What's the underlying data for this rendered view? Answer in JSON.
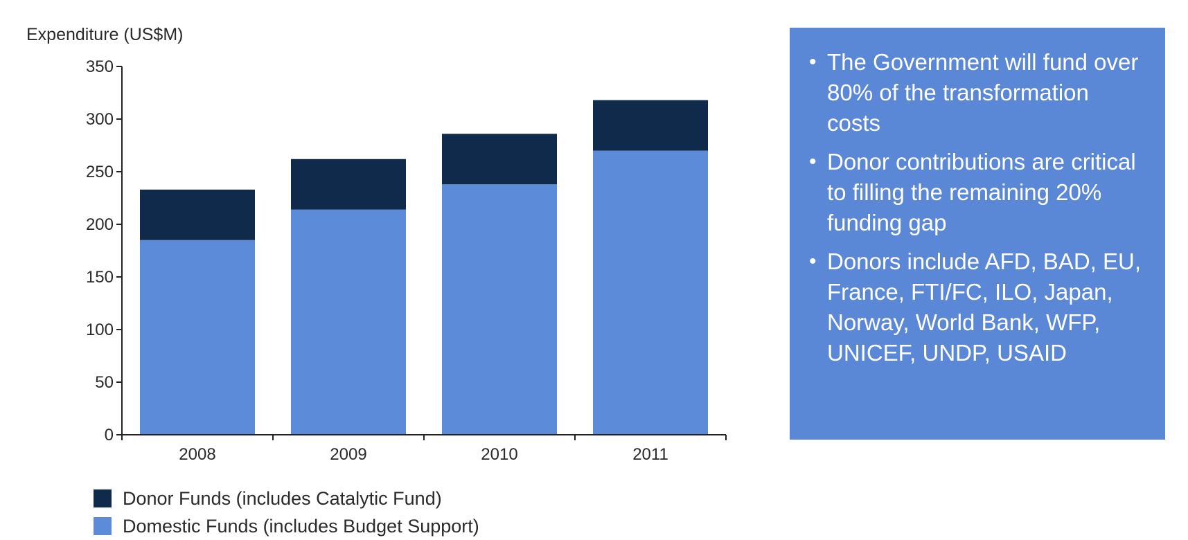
{
  "chart_data": {
    "type": "bar",
    "stacked": true,
    "ylabel": "Expenditure (US$M)",
    "xlabel": "",
    "ylim": [
      0,
      350
    ],
    "yticks": [
      0,
      50,
      100,
      150,
      200,
      250,
      300,
      350
    ],
    "categories": [
      "2008",
      "2009",
      "2010",
      "2011"
    ],
    "series": [
      {
        "name": "Domestic Funds (includes Budget Support)",
        "values": [
          185,
          214,
          238,
          270
        ],
        "color": "#5b8bd9"
      },
      {
        "name": "Donor Funds (includes Catalytic Fund)",
        "values": [
          48,
          48,
          48,
          48
        ],
        "color": "#0f2a4a"
      }
    ],
    "grid": false,
    "legend_position": "bottom-left"
  },
  "legend": [
    {
      "label": "Donor Funds (includes Catalytic Fund)",
      "color": "#0f2a4a"
    },
    {
      "label": "Domestic Funds (includes Budget Support)",
      "color": "#5b8bd9"
    }
  ],
  "panel": {
    "background": "#5b88d6",
    "bullets": [
      "The Government will fund over 80% of the transformation costs",
      "Donor contributions are critical to filling the remaining 20% funding gap",
      "Donors include AFD, BAD, EU, France, FTI/FC, ILO, Japan, Norway, World Bank, WFP, UNICEF, UNDP, USAID"
    ]
  }
}
